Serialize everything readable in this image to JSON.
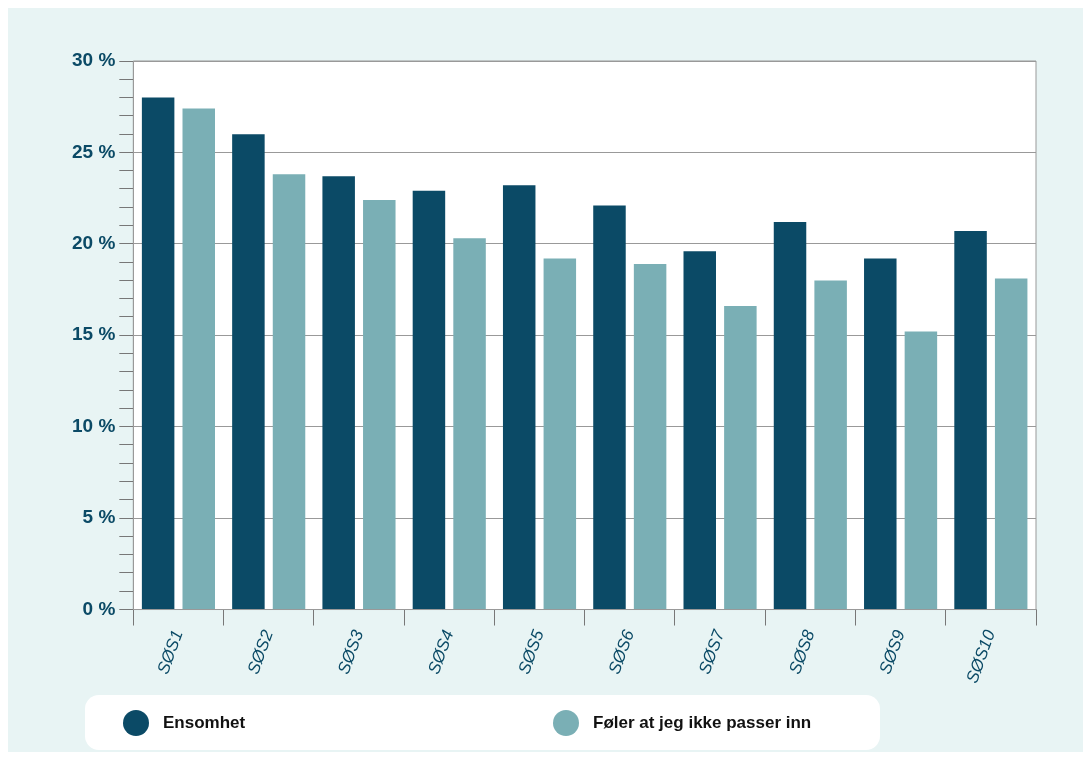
{
  "chart_data": {
    "type": "bar",
    "categories": [
      "SØS1",
      "SØS2",
      "SØS3",
      "SØS4",
      "SØS5",
      "SØS6",
      "SØS7",
      "SØS8",
      "SØS9",
      "SØS10"
    ],
    "series": [
      {
        "name": "Ensomhet",
        "color": "#0b4a66",
        "values": [
          28.0,
          26.0,
          23.7,
          22.9,
          23.2,
          22.1,
          19.6,
          21.2,
          19.2,
          20.7
        ]
      },
      {
        "name": "Føler at jeg ikke passer inn",
        "color": "#7aafb5",
        "values": [
          27.4,
          23.8,
          22.4,
          20.3,
          19.2,
          18.9,
          16.6,
          18.0,
          15.2,
          18.1
        ]
      }
    ],
    "ylim": [
      0,
      30
    ],
    "yticks": [
      {
        "value": 0,
        "label": "0 %"
      },
      {
        "value": 1,
        "label": null
      },
      {
        "value": 2,
        "label": null
      },
      {
        "value": 3,
        "label": null
      },
      {
        "value": 4,
        "label": null
      },
      {
        "value": 5,
        "label": "5 %"
      },
      {
        "value": 6,
        "label": null
      },
      {
        "value": 7,
        "label": null
      },
      {
        "value": 8,
        "label": null
      },
      {
        "value": 9,
        "label": null
      },
      {
        "value": 10,
        "label": "10 %"
      },
      {
        "value": 11,
        "label": null
      },
      {
        "value": 12,
        "label": null
      },
      {
        "value": 13,
        "label": null
      },
      {
        "value": 14,
        "label": null
      },
      {
        "value": 15,
        "label": "15 %"
      },
      {
        "value": 16,
        "label": null
      },
      {
        "value": 17,
        "label": null
      },
      {
        "value": 18,
        "label": null
      },
      {
        "value": 19,
        "label": null
      },
      {
        "value": 20,
        "label": "20 %"
      },
      {
        "value": 21,
        "label": null
      },
      {
        "value": 22,
        "label": null
      },
      {
        "value": 23,
        "label": null
      },
      {
        "value": 24,
        "label": null
      },
      {
        "value": 25,
        "label": "25 %"
      },
      {
        "value": 26,
        "label": null
      },
      {
        "value": 27,
        "label": null
      },
      {
        "value": 28,
        "label": null
      },
      {
        "value": 29,
        "label": null
      },
      {
        "value": 30,
        "label": "30 %"
      }
    ],
    "grid": "y",
    "legend": "bottom"
  }
}
